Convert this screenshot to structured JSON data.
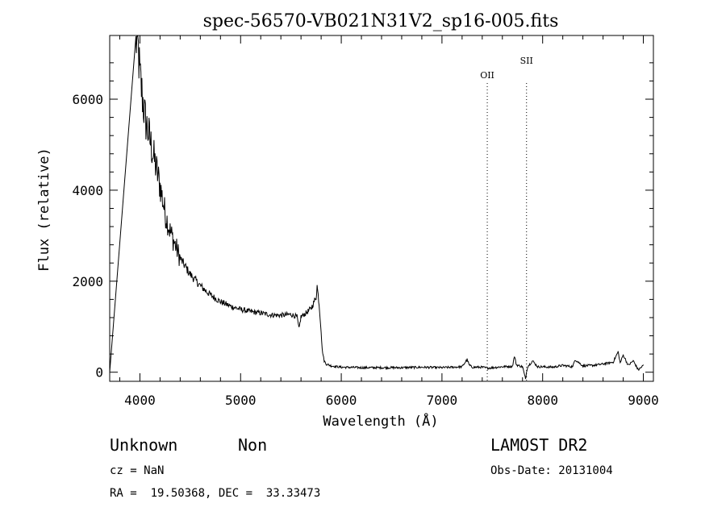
{
  "chart_data": {
    "type": "line",
    "title": "spec-56570-VB021N31V2_sp16-005.fits",
    "xlabel": "Wavelength (Å)",
    "ylabel": "Flux (relative)",
    "xlim": [
      3700,
      9100
    ],
    "ylim": [
      -200,
      7400
    ],
    "xticks": [
      4000,
      5000,
      6000,
      7000,
      8000,
      9000
    ],
    "yticks": [
      0,
      2000,
      4000,
      6000
    ],
    "xtick_labels": [
      "4000",
      "5000",
      "6000",
      "7000",
      "8000",
      "9000"
    ],
    "ytick_labels": [
      "0",
      "2000",
      "4000",
      "6000"
    ],
    "series": [
      {
        "name": "spectrum",
        "x": [
          3700,
          3960,
          3975,
          4000,
          4050,
          4100,
          4150,
          4200,
          4250,
          4300,
          4400,
          4500,
          4600,
          4700,
          4800,
          4900,
          5000,
          5100,
          5200,
          5300,
          5400,
          5500,
          5560,
          5580,
          5600,
          5650,
          5700,
          5750,
          5760,
          5780,
          5800,
          5810,
          5830,
          5850,
          5900,
          6000,
          6200,
          6400,
          6600,
          6800,
          7000,
          7200,
          7250,
          7270,
          7300,
          7400,
          7450,
          7500,
          7600,
          7700,
          7720,
          7740,
          7800,
          7830,
          7840,
          7850,
          7900,
          7950,
          8000,
          8100,
          8200,
          8300,
          8320,
          8400,
          8500,
          8600,
          8700,
          8750,
          8770,
          8800,
          8850,
          8900,
          8950,
          9000
        ],
        "y": [
          0,
          7200,
          7400,
          6500,
          5600,
          5100,
          4600,
          4100,
          3500,
          3100,
          2500,
          2150,
          1900,
          1700,
          1550,
          1450,
          1380,
          1330,
          1300,
          1260,
          1250,
          1270,
          1220,
          950,
          1220,
          1300,
          1400,
          1650,
          1900,
          1500,
          900,
          500,
          250,
          180,
          140,
          110,
          100,
          100,
          100,
          110,
          100,
          120,
          280,
          160,
          110,
          110,
          90,
          100,
          120,
          130,
          350,
          160,
          120,
          -150,
          0,
          120,
          250,
          120,
          120,
          110,
          150,
          120,
          280,
          140,
          150,
          180,
          220,
          450,
          200,
          380,
          150,
          250,
          50,
          150
        ]
      }
    ],
    "lines": [
      {
        "label": "OII",
        "x": 7450
      },
      {
        "label": "SII",
        "x": 7840
      }
    ]
  },
  "footer": {
    "class_label": "Unknown",
    "subclass_label": "Non",
    "survey": "LAMOST DR2",
    "redshift": "cz = NaN",
    "obs_date": "Obs-Date: 20131004",
    "coords": "RA =  19.50368, DEC =  33.33473"
  }
}
